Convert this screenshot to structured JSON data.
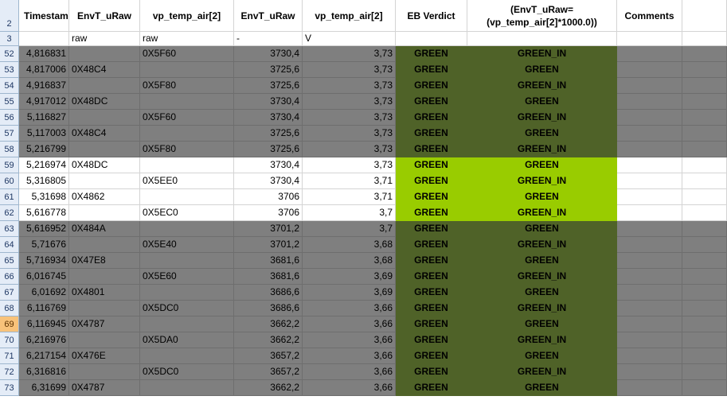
{
  "header_row": {
    "row_number": "2",
    "columns": [
      "Timestamp",
      "EnvT_uRaw",
      "vp_temp_air[2]",
      "EnvT_uRaw",
      "vp_temp_air[2]",
      "EB Verdict",
      "(EnvT_uRaw=(vp_temp_air[2]*1000.0))",
      "Comments"
    ]
  },
  "unit_row": {
    "row_number": "3",
    "values": [
      "",
      "raw",
      "raw",
      "-",
      "V",
      "",
      "",
      ""
    ]
  },
  "rows": [
    {
      "num": "52",
      "shade": "grey",
      "cells": [
        "4,816831",
        "",
        "0X5F60",
        "3730,4",
        "3,73",
        "GREEN",
        "GREEN_IN",
        ""
      ]
    },
    {
      "num": "53",
      "shade": "grey",
      "cells": [
        "4,817006",
        "0X48C4",
        "",
        "3725,6",
        "3,73",
        "GREEN",
        "GREEN",
        ""
      ]
    },
    {
      "num": "54",
      "shade": "grey",
      "cells": [
        "4,916837",
        "",
        "0X5F80",
        "3725,6",
        "3,73",
        "GREEN",
        "GREEN_IN",
        ""
      ]
    },
    {
      "num": "55",
      "shade": "grey",
      "cells": [
        "4,917012",
        "0X48DC",
        "",
        "3730,4",
        "3,73",
        "GREEN",
        "GREEN",
        ""
      ]
    },
    {
      "num": "56",
      "shade": "grey",
      "cells": [
        "5,116827",
        "",
        "0X5F60",
        "3730,4",
        "3,73",
        "GREEN",
        "GREEN_IN",
        ""
      ]
    },
    {
      "num": "57",
      "shade": "grey",
      "cells": [
        "5,117003",
        "0X48C4",
        "",
        "3725,6",
        "3,73",
        "GREEN",
        "GREEN",
        ""
      ]
    },
    {
      "num": "58",
      "shade": "grey",
      "cells": [
        "5,216799",
        "",
        "0X5F80",
        "3725,6",
        "3,73",
        "GREEN",
        "GREEN_IN",
        ""
      ]
    },
    {
      "num": "59",
      "shade": "white",
      "cells": [
        "5,216974",
        "0X48DC",
        "",
        "3730,4",
        "3,73",
        "GREEN",
        "GREEN",
        ""
      ]
    },
    {
      "num": "60",
      "shade": "white",
      "cells": [
        "5,316805",
        "",
        "0X5EE0",
        "3730,4",
        "3,71",
        "GREEN",
        "GREEN_IN",
        ""
      ]
    },
    {
      "num": "61",
      "shade": "white",
      "cells": [
        "5,31698",
        "0X4862",
        "",
        "3706",
        "3,71",
        "GREEN",
        "GREEN",
        ""
      ]
    },
    {
      "num": "62",
      "shade": "white",
      "cells": [
        "5,616778",
        "",
        "0X5EC0",
        "3706",
        "3,7",
        "GREEN",
        "GREEN_IN",
        ""
      ]
    },
    {
      "num": "63",
      "shade": "grey",
      "cells": [
        "5,616952",
        "0X484A",
        "",
        "3701,2",
        "3,7",
        "GREEN",
        "GREEN",
        ""
      ]
    },
    {
      "num": "64",
      "shade": "grey",
      "cells": [
        "5,71676",
        "",
        "0X5E40",
        "3701,2",
        "3,68",
        "GREEN",
        "GREEN_IN",
        ""
      ]
    },
    {
      "num": "65",
      "shade": "grey",
      "cells": [
        "5,716934",
        "0X47E8",
        "",
        "3681,6",
        "3,68",
        "GREEN",
        "GREEN",
        ""
      ]
    },
    {
      "num": "66",
      "shade": "grey",
      "cells": [
        "6,016745",
        "",
        "0X5E60",
        "3681,6",
        "3,69",
        "GREEN",
        "GREEN_IN",
        ""
      ]
    },
    {
      "num": "67",
      "shade": "grey",
      "cells": [
        "6,01692",
        "0X4801",
        "",
        "3686,6",
        "3,69",
        "GREEN",
        "GREEN",
        ""
      ]
    },
    {
      "num": "68",
      "shade": "grey",
      "cells": [
        "6,116769",
        "",
        "0X5DC0",
        "3686,6",
        "3,66",
        "GREEN",
        "GREEN_IN",
        ""
      ]
    },
    {
      "num": "69",
      "shade": "grey",
      "selected": true,
      "cells": [
        "6,116945",
        "0X4787",
        "",
        "3662,2",
        "3,66",
        "GREEN",
        "GREEN",
        ""
      ]
    },
    {
      "num": "70",
      "shade": "grey",
      "cells": [
        "6,216976",
        "",
        "0X5DA0",
        "3662,2",
        "3,66",
        "GREEN",
        "GREEN_IN",
        ""
      ]
    },
    {
      "num": "71",
      "shade": "grey",
      "cells": [
        "6,217154",
        "0X476E",
        "",
        "3657,2",
        "3,66",
        "GREEN",
        "GREEN",
        ""
      ]
    },
    {
      "num": "72",
      "shade": "grey",
      "cells": [
        "6,316816",
        "",
        "0X5DC0",
        "3657,2",
        "3,66",
        "GREEN",
        "GREEN_IN",
        ""
      ]
    },
    {
      "num": "73",
      "shade": "grey",
      "cells": [
        "6,31699",
        "0X4787",
        "",
        "3662,2",
        "3,66",
        "GREEN",
        "GREEN",
        ""
      ]
    }
  ],
  "colors": {
    "grey_band": "#7f7f7f",
    "verdict_dark_green": "#4f6228",
    "verdict_light_green": "#99cc00",
    "selected_row_header": "#f8c27a"
  }
}
